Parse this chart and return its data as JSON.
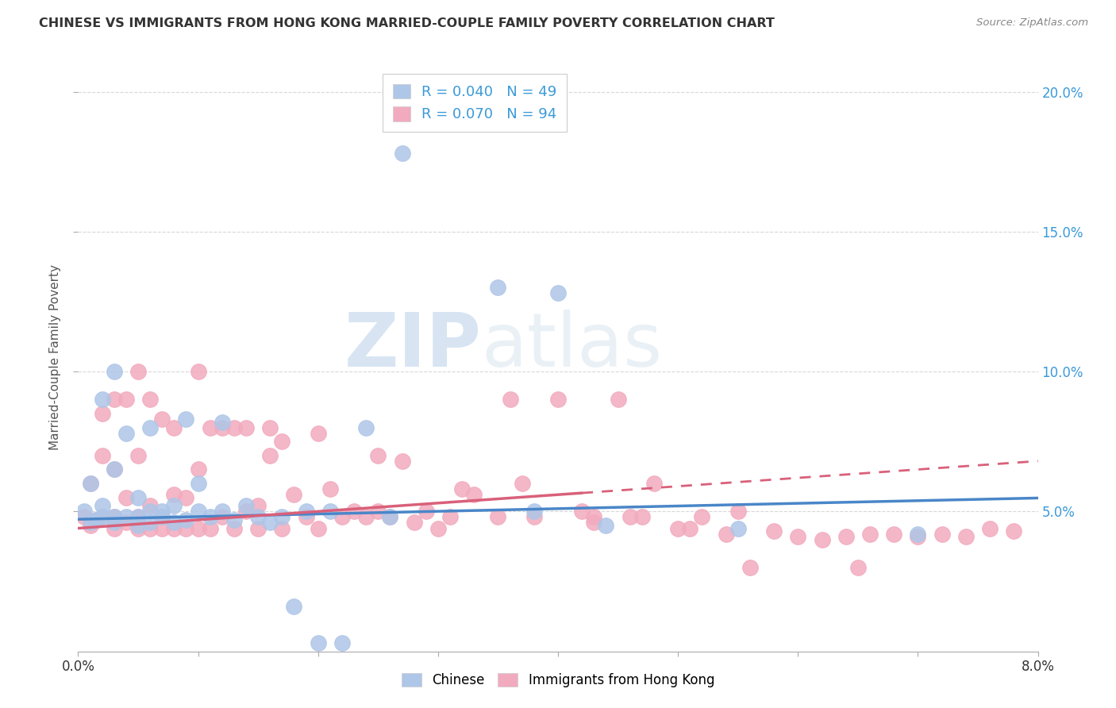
{
  "title": "CHINESE VS IMMIGRANTS FROM HONG KONG MARRIED-COUPLE FAMILY POVERTY CORRELATION CHART",
  "source": "Source: ZipAtlas.com",
  "ylabel": "Married-Couple Family Poverty",
  "xlim": [
    0.0,
    0.08
  ],
  "ylim": [
    0.0,
    0.21
  ],
  "chinese_R": 0.04,
  "chinese_N": 49,
  "hk_R": 0.07,
  "hk_N": 94,
  "chinese_color": "#aec6e8",
  "hk_color": "#f2abbe",
  "chinese_line_color": "#4a86c8",
  "hk_line_color": "#d9607a",
  "watermark_color": "#d0e4f5",
  "background_color": "#ffffff",
  "grid_color": "#d8d8d8",
  "legend_label_chinese": "Chinese",
  "legend_label_hk": "Immigrants from Hong Kong",
  "ch_x": [
    0.0005,
    0.001,
    0.001,
    0.0015,
    0.002,
    0.002,
    0.002,
    0.003,
    0.003,
    0.003,
    0.003,
    0.004,
    0.004,
    0.005,
    0.005,
    0.005,
    0.006,
    0.006,
    0.006,
    0.007,
    0.007,
    0.008,
    0.008,
    0.009,
    0.009,
    0.01,
    0.01,
    0.011,
    0.012,
    0.012,
    0.013,
    0.014,
    0.015,
    0.016,
    0.017,
    0.018,
    0.019,
    0.02,
    0.021,
    0.022,
    0.024,
    0.026,
    0.027,
    0.035,
    0.038,
    0.04,
    0.044,
    0.055,
    0.07
  ],
  "ch_y": [
    0.05,
    0.046,
    0.06,
    0.047,
    0.048,
    0.052,
    0.09,
    0.046,
    0.048,
    0.065,
    0.1,
    0.048,
    0.078,
    0.045,
    0.048,
    0.055,
    0.046,
    0.05,
    0.08,
    0.048,
    0.05,
    0.046,
    0.052,
    0.047,
    0.083,
    0.05,
    0.06,
    0.048,
    0.05,
    0.082,
    0.047,
    0.052,
    0.048,
    0.046,
    0.048,
    0.016,
    0.05,
    0.003,
    0.05,
    0.003,
    0.08,
    0.048,
    0.178,
    0.13,
    0.05,
    0.128,
    0.045,
    0.044,
    0.042
  ],
  "hk_x": [
    0.0005,
    0.001,
    0.001,
    0.0015,
    0.002,
    0.002,
    0.002,
    0.003,
    0.003,
    0.003,
    0.003,
    0.004,
    0.004,
    0.004,
    0.005,
    0.005,
    0.005,
    0.005,
    0.006,
    0.006,
    0.006,
    0.007,
    0.007,
    0.007,
    0.008,
    0.008,
    0.008,
    0.009,
    0.009,
    0.01,
    0.01,
    0.01,
    0.011,
    0.011,
    0.012,
    0.012,
    0.013,
    0.013,
    0.014,
    0.014,
    0.015,
    0.015,
    0.016,
    0.016,
    0.017,
    0.017,
    0.018,
    0.019,
    0.02,
    0.02,
    0.021,
    0.022,
    0.023,
    0.024,
    0.025,
    0.025,
    0.026,
    0.027,
    0.028,
    0.029,
    0.03,
    0.031,
    0.032,
    0.033,
    0.035,
    0.036,
    0.037,
    0.038,
    0.04,
    0.042,
    0.043,
    0.045,
    0.046,
    0.048,
    0.05,
    0.052,
    0.054,
    0.056,
    0.058,
    0.06,
    0.062,
    0.064,
    0.065,
    0.066,
    0.068,
    0.07,
    0.072,
    0.074,
    0.076,
    0.078,
    0.043,
    0.047,
    0.051,
    0.055
  ],
  "hk_y": [
    0.048,
    0.045,
    0.06,
    0.047,
    0.048,
    0.07,
    0.085,
    0.044,
    0.048,
    0.065,
    0.09,
    0.046,
    0.055,
    0.09,
    0.044,
    0.048,
    0.07,
    0.1,
    0.044,
    0.052,
    0.09,
    0.044,
    0.048,
    0.083,
    0.044,
    0.056,
    0.08,
    0.044,
    0.055,
    0.044,
    0.065,
    0.1,
    0.044,
    0.08,
    0.048,
    0.08,
    0.044,
    0.08,
    0.05,
    0.08,
    0.044,
    0.052,
    0.07,
    0.08,
    0.044,
    0.075,
    0.056,
    0.048,
    0.044,
    0.078,
    0.058,
    0.048,
    0.05,
    0.048,
    0.05,
    0.07,
    0.048,
    0.068,
    0.046,
    0.05,
    0.044,
    0.048,
    0.058,
    0.056,
    0.048,
    0.09,
    0.06,
    0.048,
    0.09,
    0.05,
    0.048,
    0.09,
    0.048,
    0.06,
    0.044,
    0.048,
    0.042,
    0.03,
    0.043,
    0.041,
    0.04,
    0.041,
    0.03,
    0.042,
    0.042,
    0.041,
    0.042,
    0.041,
    0.044,
    0.043,
    0.046,
    0.048,
    0.044,
    0.05
  ],
  "ch_line_x0": 0.0,
  "ch_line_x1": 0.08,
  "ch_line_y0": 0.0472,
  "ch_line_y1": 0.0548,
  "hk_line_solid_x0": 0.0,
  "hk_line_solid_x1": 0.042,
  "hk_line_y0": 0.044,
  "hk_line_y1_solid": 0.0575,
  "hk_line_dashed_x0": 0.042,
  "hk_line_dashed_x1": 0.08,
  "hk_line_y1_dashed": 0.068
}
